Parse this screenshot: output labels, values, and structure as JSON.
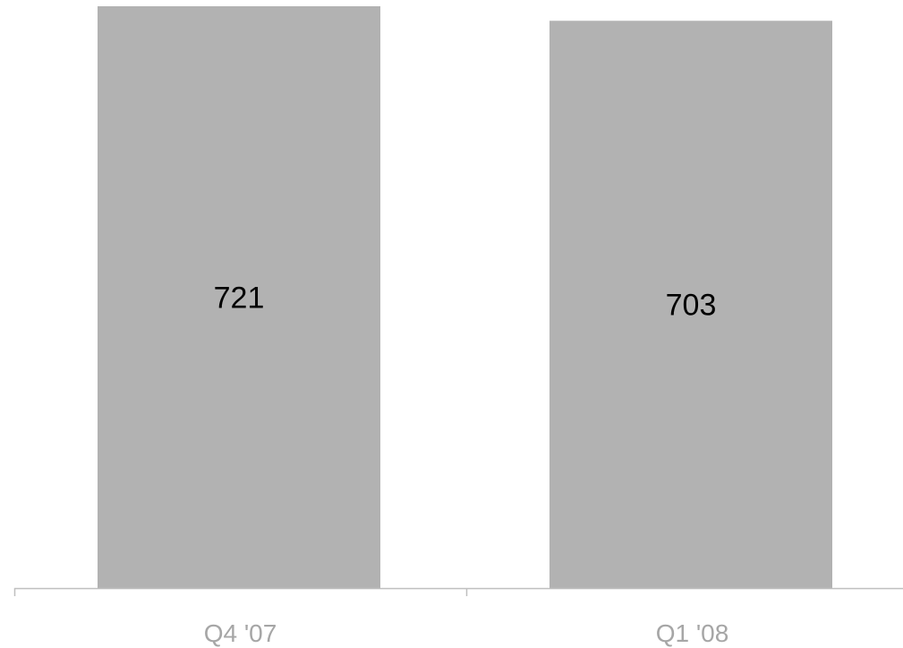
{
  "chart_data": {
    "type": "bar",
    "categories": [
      "Q4 '07",
      "Q1 '08"
    ],
    "values": [
      721,
      703
    ],
    "data_labels": [
      "721",
      "703"
    ],
    "title": "",
    "xlabel": "",
    "ylabel": "",
    "ylim": [
      0,
      721
    ],
    "grid": false,
    "legend": "none",
    "colors": {
      "bar": "#b2b2b2",
      "axis": "#bfbfbf",
      "tick_text": "#a6a6a6",
      "value_text": "#000000"
    }
  }
}
